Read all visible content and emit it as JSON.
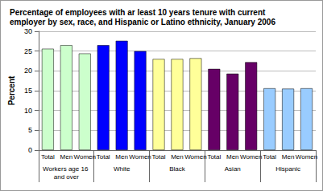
{
  "chart_data": {
    "type": "bar",
    "title": "Percentage of employees with ar least 10 years tenure with current employer by sex, race, and Hispanic or Latino ethnicity, January 2006",
    "y_label": "Percent",
    "categories": [
      "Total",
      "Men",
      "Women",
      "Total",
      "Men",
      "Women",
      "Total",
      "Men",
      "Women",
      "Total",
      "Men",
      "Women",
      "Total",
      "Men",
      "Women"
    ],
    "groups": [
      "Workers age 16 and over",
      "White",
      "Black",
      "Asian",
      "Hispanic"
    ],
    "values": [
      25.6,
      26.5,
      24.4,
      26.5,
      27.6,
      25.0,
      23.0,
      23.0,
      23.2,
      20.5,
      19.3,
      22.2,
      15.6,
      15.5,
      15.6
    ],
    "colors": [
      "#ccffcc",
      "#ccffcc",
      "#ccffcc",
      "#0000ff",
      "#0000ff",
      "#0000ff",
      "#ffff99",
      "#ffff99",
      "#ffff99",
      "#660066",
      "#660066",
      "#660066",
      "#99ccff",
      "#99ccff",
      "#99ccff"
    ],
    "ylim": [
      0,
      30
    ],
    "yticks": [
      0,
      5,
      10,
      15,
      20,
      25,
      30
    ],
    "grid": true
  }
}
